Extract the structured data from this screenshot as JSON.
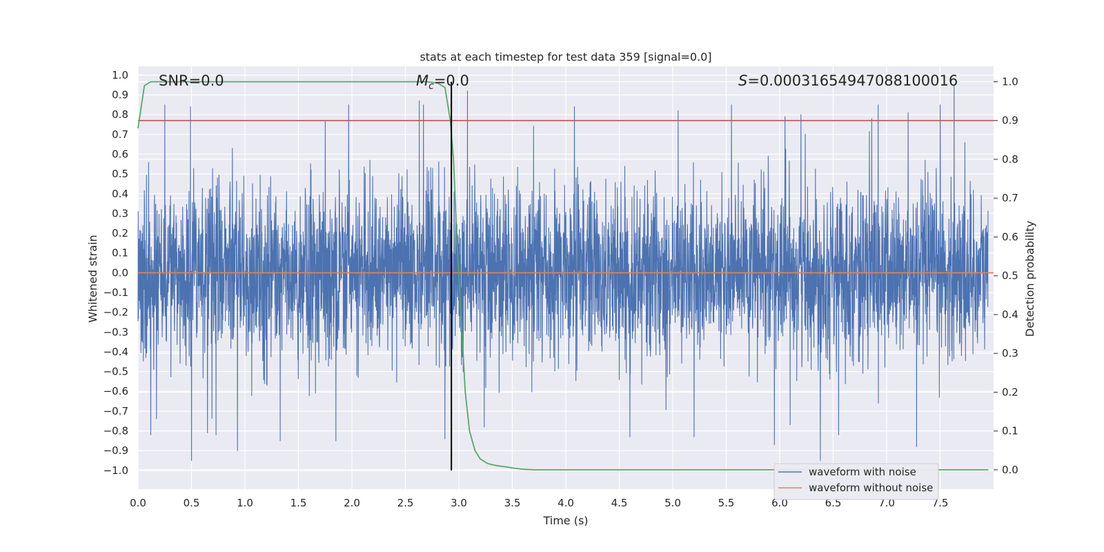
{
  "chart_data": {
    "type": "line",
    "title": "stats at each timestep for test data 359 [signal=0.0]",
    "xlabel": "Time (s)",
    "ylabel": "Whitened strain",
    "y2label": "Detection probability",
    "xlim": [
      0.0,
      8.0
    ],
    "ylim": [
      -1.095,
      1.045
    ],
    "y2lim": [
      -0.05,
      1.04
    ],
    "grid": true,
    "legend_position": "lower-right",
    "x_ticks": [
      "0.0",
      "0.5",
      "1.0",
      "1.5",
      "2.0",
      "2.5",
      "3.0",
      "3.5",
      "4.0",
      "4.5",
      "5.0",
      "5.5",
      "6.0",
      "6.5",
      "7.0",
      "7.5"
    ],
    "y_ticks": [
      "1.0",
      "0.9",
      "0.8",
      "0.7",
      "0.6",
      "0.5",
      "0.4",
      "0.3",
      "0.2",
      "0.1",
      "0.0",
      "−0.1",
      "−0.2",
      "−0.3",
      "−0.4",
      "−0.5",
      "−0.6",
      "−0.7",
      "−0.8",
      "−0.9",
      "−1.0"
    ],
    "y2_ticks": [
      "1.0",
      "0.9",
      "0.8",
      "0.7",
      "0.6",
      "0.5",
      "0.4",
      "0.3",
      "0.2",
      "0.1",
      "0.0"
    ],
    "annotations": {
      "snr": "SNR=0.0",
      "mc_symbol": "M",
      "mc_sub": "c",
      "mc_value": "=0.0",
      "s_symbol": "S",
      "s_value": "=0.00031654947088100016"
    },
    "series": [
      {
        "name": "waveform with noise",
        "color": "#4c72b0",
        "axis": "left",
        "description": "dense whitened noise, roughly |y| < 0.35 with spikes up to about ±0.95",
        "peak_x": [
          0.25,
          0.49,
          1.75,
          1.97,
          2.63,
          2.67,
          3.08,
          4.08,
          5.05,
          5.55,
          6.05,
          6.2,
          6.86,
          6.92,
          7.2,
          7.5,
          7.63
        ],
        "peak_y": [
          0.85,
          0.84,
          0.77,
          0.85,
          0.87,
          0.85,
          0.92,
          0.84,
          0.82,
          0.85,
          0.79,
          0.8,
          0.78,
          0.85,
          0.81,
          0.85,
          0.95
        ],
        "trough_x": [
          0.12,
          0.5,
          0.65,
          0.73,
          0.93,
          1.33,
          1.85,
          2.87,
          4.6,
          5.2,
          5.95,
          6.38,
          6.55,
          7.28,
          7.96
        ],
        "trough_y": [
          -0.82,
          -0.95,
          -0.81,
          -0.82,
          -0.9,
          -0.85,
          -0.85,
          -0.84,
          -0.83,
          -0.83,
          -0.87,
          -0.95,
          -0.82,
          -0.88,
          -0.83
        ]
      },
      {
        "name": "waveform without noise",
        "color": "#dd8452",
        "axis": "left",
        "x": [
          0.0,
          8.0
        ],
        "y": [
          0.0,
          0.0
        ]
      },
      {
        "name": "",
        "color": "#55a868",
        "axis": "right",
        "x": [
          0.0,
          0.06,
          0.12,
          0.2,
          0.4,
          1.0,
          2.0,
          2.5,
          2.7,
          2.8,
          2.87,
          2.92,
          2.95,
          2.98,
          3.02,
          3.06,
          3.1,
          3.15,
          3.2,
          3.27,
          3.35,
          3.45,
          3.52,
          3.58,
          3.63,
          3.7,
          3.8,
          4.0,
          5.0,
          6.0,
          7.0,
          7.95
        ],
        "y": [
          0.88,
          0.99,
          1.0,
          1.0,
          1.0,
          1.0,
          1.0,
          1.0,
          1.0,
          0.997,
          0.985,
          0.9,
          0.8,
          0.6,
          0.4,
          0.2,
          0.1,
          0.05,
          0.028,
          0.016,
          0.011,
          0.007,
          0.004,
          0.002,
          0.001,
          0.0,
          0.0,
          0.0,
          0.0,
          0.0,
          0.0,
          0.0
        ]
      }
    ],
    "reference_lines": {
      "threshold_y2": 0.9,
      "threshold_color": "#c44e52",
      "marker_x": 2.93,
      "marker_color": "#000000"
    }
  }
}
